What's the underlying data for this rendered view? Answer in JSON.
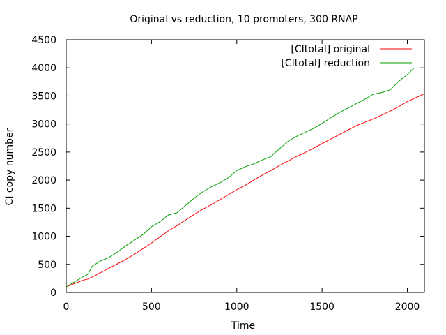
{
  "chart_data": {
    "type": "line",
    "title": "Original vs reduction, 10 promoters, 300 RNAP",
    "xlabel": "Time",
    "ylabel": "CI copy number",
    "xlim": [
      0,
      2100
    ],
    "ylim": [
      0,
      4500
    ],
    "xticks": [
      0,
      500,
      1000,
      1500,
      2000
    ],
    "yticks": [
      0,
      500,
      1000,
      1500,
      2000,
      2500,
      3000,
      3500,
      4000,
      4500
    ],
    "grid": false,
    "legend": "top-right",
    "series": [
      {
        "name": "[CItotal] original",
        "color": "#ff0000",
        "points": [
          [
            0,
            100
          ],
          [
            50,
            160
          ],
          [
            100,
            220
          ],
          [
            130,
            240
          ],
          [
            150,
            270
          ],
          [
            200,
            350
          ],
          [
            250,
            430
          ],
          [
            300,
            510
          ],
          [
            350,
            590
          ],
          [
            400,
            680
          ],
          [
            450,
            780
          ],
          [
            500,
            880
          ],
          [
            550,
            990
          ],
          [
            600,
            1100
          ],
          [
            650,
            1190
          ],
          [
            700,
            1290
          ],
          [
            750,
            1390
          ],
          [
            800,
            1480
          ],
          [
            850,
            1560
          ],
          [
            900,
            1650
          ],
          [
            950,
            1740
          ],
          [
            1000,
            1830
          ],
          [
            1050,
            1910
          ],
          [
            1100,
            2000
          ],
          [
            1150,
            2090
          ],
          [
            1200,
            2170
          ],
          [
            1250,
            2260
          ],
          [
            1300,
            2340
          ],
          [
            1350,
            2420
          ],
          [
            1400,
            2490
          ],
          [
            1450,
            2570
          ],
          [
            1500,
            2650
          ],
          [
            1550,
            2730
          ],
          [
            1600,
            2810
          ],
          [
            1650,
            2890
          ],
          [
            1700,
            2970
          ],
          [
            1750,
            3030
          ],
          [
            1800,
            3090
          ],
          [
            1850,
            3160
          ],
          [
            1900,
            3230
          ],
          [
            1950,
            3310
          ],
          [
            2000,
            3400
          ],
          [
            2050,
            3470
          ],
          [
            2100,
            3540
          ]
        ]
      },
      {
        "name": "[CItotal] reduction",
        "color": "#00a000",
        "points": [
          [
            0,
            100
          ],
          [
            50,
            190
          ],
          [
            100,
            280
          ],
          [
            130,
            330
          ],
          [
            150,
            460
          ],
          [
            200,
            560
          ],
          [
            250,
            620
          ],
          [
            300,
            720
          ],
          [
            350,
            830
          ],
          [
            400,
            930
          ],
          [
            450,
            1030
          ],
          [
            500,
            1170
          ],
          [
            550,
            1260
          ],
          [
            600,
            1380
          ],
          [
            650,
            1420
          ],
          [
            700,
            1550
          ],
          [
            750,
            1680
          ],
          [
            800,
            1790
          ],
          [
            850,
            1880
          ],
          [
            900,
            1950
          ],
          [
            950,
            2040
          ],
          [
            1000,
            2170
          ],
          [
            1050,
            2240
          ],
          [
            1100,
            2290
          ],
          [
            1150,
            2360
          ],
          [
            1200,
            2420
          ],
          [
            1250,
            2560
          ],
          [
            1300,
            2690
          ],
          [
            1350,
            2780
          ],
          [
            1400,
            2850
          ],
          [
            1450,
            2920
          ],
          [
            1500,
            3010
          ],
          [
            1550,
            3110
          ],
          [
            1600,
            3200
          ],
          [
            1650,
            3280
          ],
          [
            1700,
            3360
          ],
          [
            1750,
            3440
          ],
          [
            1800,
            3530
          ],
          [
            1850,
            3560
          ],
          [
            1900,
            3610
          ],
          [
            1950,
            3760
          ],
          [
            2000,
            3880
          ],
          [
            2040,
            4000
          ]
        ]
      }
    ]
  }
}
